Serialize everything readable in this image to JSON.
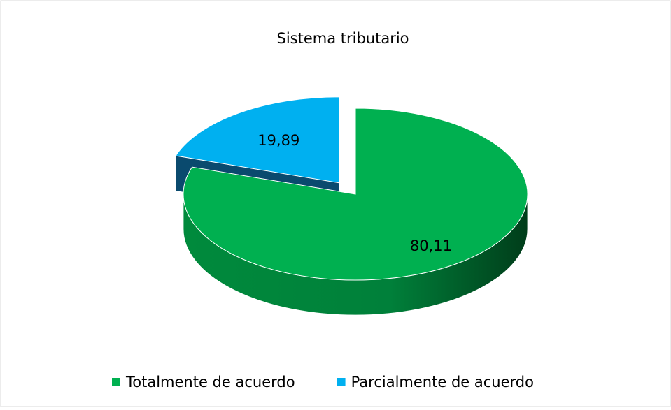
{
  "chart_data": {
    "type": "pie",
    "title": "Sistema tributario",
    "categories": [
      "Totalmente de acuerdo",
      "Parcialmente de acuerdo"
    ],
    "values": [
      80.11,
      19.89
    ],
    "value_labels": [
      "80,11",
      "19,89"
    ],
    "colors": [
      "#00b050",
      "#00b0f0"
    ],
    "legend": "bottom"
  }
}
